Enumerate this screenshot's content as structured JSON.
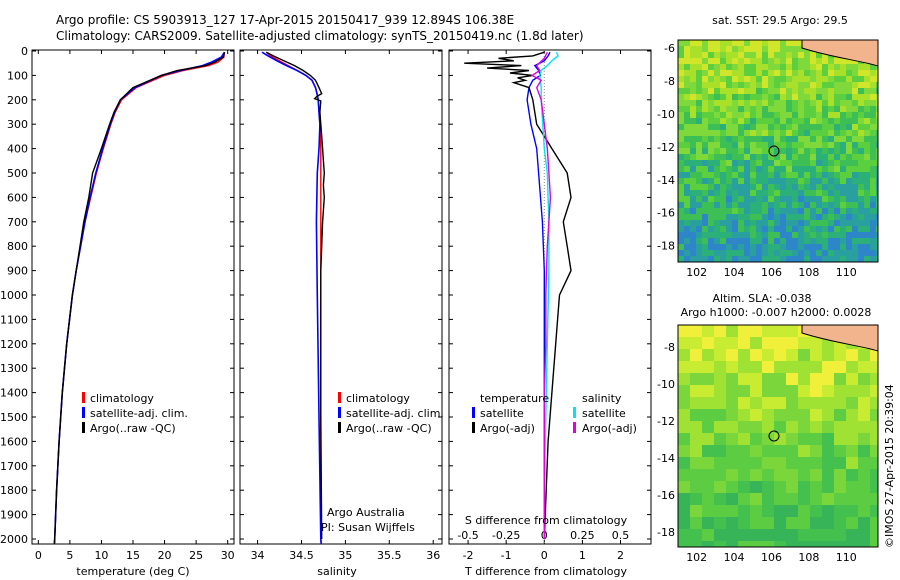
{
  "header": {
    "line1": "Argo profile: CS 5903913_127 17-Apr-2015 20150417_939 12.894S 106.38E",
    "line2": "Climatology: CARS2009. Satellite-adjusted climatology: synTS_20150419.nc (1.8d later)"
  },
  "depth_ticks": [
    "0",
    "100",
    "200",
    "300",
    "400",
    "500",
    "600",
    "700",
    "800",
    "900",
    "1000",
    "1100",
    "1200",
    "1300",
    "1400",
    "1500",
    "1600",
    "1700",
    "1800",
    "1900",
    "2000"
  ],
  "legend1": {
    "items": [
      "climatology",
      "satellite-adj. clim.",
      "Argo(..raw -QC)"
    ]
  },
  "legend3": {
    "temp_head": "temperature",
    "sal_head": "salinity",
    "sat": "satellite",
    "argo": "Argo(-adj)"
  },
  "credits": {
    "org": "Argo Australia",
    "pi": "PI: Susan Wijffels"
  },
  "map_top": {
    "title": "sat. SST: 29.5 Argo: 29.5"
  },
  "map_bottom": {
    "title1": "Altim. SLA: -0.038",
    "title2": "Argo h1000: -0.007 h2000: 0.0028"
  },
  "map_yticks": [
    "-6",
    "-8",
    "-10",
    "-12",
    "-14",
    "-16",
    "-18"
  ],
  "map_yticks2": [
    "-8",
    "-10",
    "-12",
    "-14",
    "-16",
    "-18"
  ],
  "map_xticks": [
    "102",
    "104",
    "106",
    "108",
    "110"
  ],
  "imos": "©IMOS 27-Apr-2015 20:39:04",
  "colors": {
    "climatology": "#ff0000",
    "satellite": "#0000ff",
    "argo": "#000000",
    "sat_temp": "#00e5ee",
    "argo_sal": "#e000e0"
  },
  "chart_data": [
    {
      "type": "line",
      "xlabel": "temperature (deg C)",
      "ylabel": "",
      "xlim": [
        -1,
        31
      ],
      "ylim": [
        2050,
        0
      ],
      "xticks": [
        "0",
        "5",
        "10",
        "15",
        "20",
        "25",
        "30"
      ],
      "series": [
        {
          "name": "climatology",
          "depth": [
            5,
            25,
            45,
            60,
            80,
            100,
            150,
            200,
            250,
            300,
            400,
            500,
            600,
            700,
            800,
            900,
            1000,
            1200,
            1400,
            1600,
            1800,
            2000,
            2040
          ],
          "values": [
            29.5,
            29.4,
            28.5,
            27.0,
            23.0,
            20.0,
            15.5,
            13.2,
            12.2,
            11.5,
            10.3,
            9.2,
            8.3,
            7.4,
            6.7,
            6.0,
            5.4,
            4.5,
            3.8,
            3.3,
            2.9,
            2.6,
            2.5
          ]
        },
        {
          "name": "satellite-adj. clim.",
          "depth": [
            5,
            25,
            45,
            60,
            80,
            100,
            150,
            200,
            250,
            300,
            400,
            500,
            600,
            700,
            800,
            900,
            1000,
            1200,
            1400,
            1600,
            1800,
            2000,
            2040
          ],
          "values": [
            29.5,
            29.0,
            27.5,
            26.0,
            22.5,
            19.5,
            15.3,
            13.0,
            12.1,
            11.4,
            10.2,
            9.1,
            8.2,
            7.4,
            6.7,
            6.0,
            5.4,
            4.5,
            3.8,
            3.3,
            2.9,
            2.6,
            2.5
          ]
        },
        {
          "name": "Argo(..raw -QC)",
          "depth": [
            5,
            25,
            45,
            60,
            80,
            100,
            150,
            200,
            250,
            300,
            400,
            500,
            550,
            600,
            700,
            800,
            900,
            1000,
            1200,
            1400,
            1600,
            1800,
            2000,
            2040
          ],
          "values": [
            29.5,
            29.3,
            28.0,
            26.5,
            22.0,
            19.5,
            15.0,
            13.0,
            12.0,
            11.3,
            10.0,
            8.6,
            8.3,
            8.0,
            7.2,
            6.6,
            6.0,
            5.4,
            4.5,
            3.8,
            3.3,
            2.9,
            2.6,
            2.5
          ]
        }
      ]
    },
    {
      "type": "line",
      "xlabel": "salinity",
      "ylabel": "",
      "xlim": [
        33.8,
        36.1
      ],
      "ylim": [
        2050,
        0
      ],
      "xticks": [
        "34",
        "34.5",
        "35",
        "35.5",
        "36"
      ],
      "series": [
        {
          "name": "climatology",
          "depth": [
            5,
            20,
            40,
            60,
            80,
            100,
            120,
            150,
            180,
            200,
            250,
            300,
            400,
            500,
            700,
            1000,
            1500,
            2000,
            2040
          ],
          "values": [
            34.1,
            34.15,
            34.25,
            34.35,
            34.45,
            34.55,
            34.62,
            34.66,
            34.68,
            34.69,
            34.7,
            34.71,
            34.72,
            34.72,
            34.72,
            34.72,
            34.72,
            34.72,
            34.73
          ]
        },
        {
          "name": "satellite-adj. clim.",
          "depth": [
            5,
            20,
            40,
            60,
            80,
            100,
            120,
            150,
            180,
            200,
            250,
            300,
            400,
            500,
            700,
            1000,
            1500,
            2000,
            2040
          ],
          "values": [
            34.05,
            34.12,
            34.22,
            34.33,
            34.45,
            34.55,
            34.62,
            34.66,
            34.68,
            34.69,
            34.7,
            34.71,
            34.7,
            34.68,
            34.67,
            34.68,
            34.7,
            34.72,
            34.73
          ]
        },
        {
          "name": "Argo(..raw -QC)",
          "depth": [
            5,
            20,
            40,
            60,
            80,
            100,
            120,
            150,
            175,
            185,
            195,
            205,
            250,
            300,
            400,
            450,
            500,
            550,
            600,
            700,
            800,
            900,
            1000,
            1500,
            2000
          ],
          "values": [
            34.1,
            34.18,
            34.3,
            34.42,
            34.52,
            34.6,
            34.66,
            34.7,
            34.73,
            34.68,
            34.65,
            34.72,
            34.71,
            34.72,
            34.74,
            34.75,
            34.76,
            34.75,
            34.76,
            34.74,
            34.73,
            34.72,
            34.72,
            34.72,
            34.73
          ]
        }
      ]
    },
    {
      "type": "line",
      "xlabel": "T difference from climatology",
      "ylabel": "",
      "xlim": [
        -2.5,
        2.8
      ],
      "ylim": [
        2050,
        0
      ],
      "xticks": [
        "-2",
        "-1",
        "0",
        "1",
        "2"
      ],
      "xlabel_top": "S difference from climatology",
      "xticks_top": [
        "-0.5",
        "-0.25",
        "0",
        "0.25",
        "0.5"
      ],
      "series": [
        {
          "name": "temperature satellite",
          "depth": [
            5,
            20,
            40,
            60,
            80,
            100,
            120,
            150,
            200,
            300,
            400,
            500,
            700,
            900,
            1200,
            1500,
            1800,
            2000
          ],
          "values": [
            0.15,
            0.1,
            0.0,
            -0.25,
            -0.15,
            -0.1,
            -0.3,
            -0.4,
            -0.45,
            -0.35,
            -0.2,
            -0.15,
            -0.05,
            0.0,
            0.0,
            0.0,
            0.0,
            0.0
          ]
        },
        {
          "name": "temperature Argo(-adj)",
          "depth": [
            5,
            20,
            30,
            40,
            50,
            60,
            70,
            80,
            90,
            100,
            110,
            120,
            130,
            150,
            200,
            300,
            400,
            500,
            600,
            700,
            800,
            900,
            1000,
            1200,
            1400,
            1600,
            1800,
            2000
          ],
          "values": [
            0.0,
            -0.3,
            -1.2,
            -0.8,
            -2.1,
            -0.6,
            -1.5,
            -0.4,
            -0.9,
            -0.3,
            -0.7,
            -0.5,
            -0.8,
            -0.4,
            -0.3,
            -0.2,
            0.2,
            0.6,
            0.7,
            0.5,
            0.6,
            0.7,
            0.4,
            0.3,
            0.2,
            0.1,
            0.05,
            0.0
          ]
        },
        {
          "name": "salinity satellite",
          "depth": [
            5,
            20,
            40,
            60,
            80,
            100,
            150,
            200,
            300,
            400,
            500,
            700,
            900,
            1200,
            1500,
            1800,
            2000
          ],
          "values": [
            0.08,
            0.09,
            0.05,
            0.02,
            -0.02,
            -0.03,
            -0.02,
            -0.02,
            -0.01,
            0.0,
            0.02,
            0.03,
            0.03,
            0.02,
            0.01,
            0.0,
            0.0
          ]
        },
        {
          "name": "salinity Argo(-adj)",
          "depth": [
            5,
            30,
            60,
            80,
            100,
            120,
            150,
            200,
            300,
            400,
            500,
            600,
            700,
            800,
            1000,
            1200,
            1400,
            1600,
            1800,
            2000
          ],
          "values": [
            0.02,
            0.0,
            -0.05,
            -0.03,
            -0.08,
            -0.02,
            -0.05,
            -0.02,
            0.0,
            0.02,
            0.03,
            0.04,
            0.03,
            0.02,
            0.01,
            0.01,
            0.0,
            0.0,
            0.0,
            0.0
          ]
        }
      ]
    }
  ]
}
